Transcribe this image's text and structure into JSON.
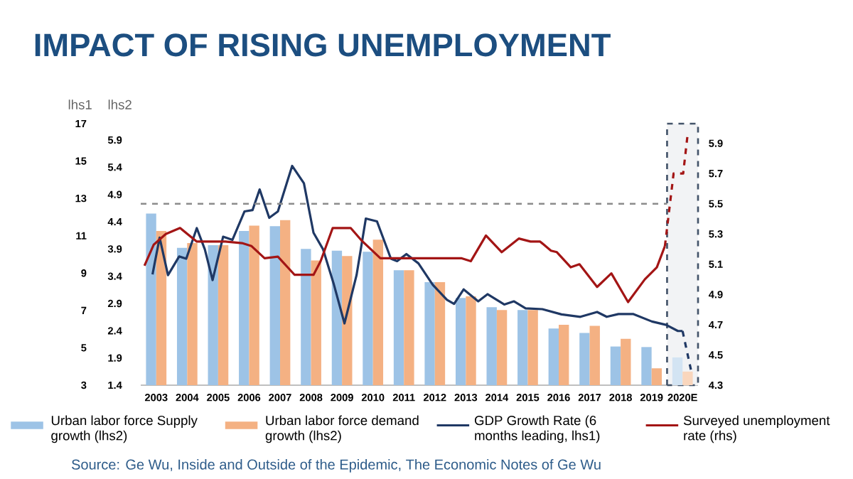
{
  "chart_data": {
    "type": "bar",
    "title": "IMPACT OF RISING UNEMPLOYMENT",
    "ylabel": "lhs1",
    "y3label": "lhs2",
    "x": [
      2003,
      2004,
      2005,
      2006,
      2007,
      2008,
      2009,
      2010,
      2011,
      2012,
      2013,
      2014,
      2015,
      2016,
      2017,
      2018,
      2019,
      2020
    ],
    "xlim": [
      2002.5,
      2020.5
    ],
    "xticks": [
      2003,
      2004,
      2005,
      2006,
      2007,
      2008,
      2009,
      2010,
      2011,
      2012,
      2013,
      2014,
      2015,
      2016,
      2017,
      2018,
      2019,
      {
        "value": 2020,
        "label": "2020E"
      }
    ],
    "ylim": [
      3,
      17
    ],
    "yticks": [
      3,
      5,
      7,
      9,
      11,
      13,
      15,
      17
    ],
    "y3lim": [
      1.4,
      6.2
    ],
    "y3ticks": [
      1.4,
      1.9,
      2.4,
      2.9,
      3.4,
      3.9,
      4.4,
      4.9,
      5.4,
      5.9
    ],
    "y2lim": [
      4.3,
      6.03
    ],
    "y2ticks": [
      4.3,
      4.5,
      4.7,
      4.9,
      5.1,
      5.3,
      5.5,
      5.7,
      5.9
    ],
    "series": [
      {
        "name": "Urban labor force Supply growth (lhs2)",
        "axis": "y3",
        "colors": [
          "#9dc3e6",
          "#9dc3e6",
          "#9dc3e6",
          "#9dc3e6",
          "#9dc3e6",
          "#9dc3e6",
          "#9dc3e6",
          "#9dc3e6",
          "#9dc3e6",
          "#9dc3e6",
          "#9dc3e6",
          "#9dc3e6",
          "#9dc3e6",
          "#9dc3e6",
          "#9dc3e6",
          "#9dc3e6",
          "#9dc3e6",
          "#d3e4f3"
        ],
        "values": [
          4.55,
          3.92,
          3.97,
          4.23,
          4.32,
          3.9,
          3.87,
          3.85,
          3.51,
          3.29,
          3.0,
          2.83,
          2.78,
          2.44,
          2.36,
          2.11,
          2.1,
          1.91
        ]
      },
      {
        "name": "Urban labor force demand growth (lhs2)",
        "axis": "y3",
        "colors": [
          "#f4b183",
          "#f4b183",
          "#f4b183",
          "#f4b183",
          "#f4b183",
          "#f4b183",
          "#f4b183",
          "#f4b183",
          "#f4b183",
          "#f4b183",
          "#f4b183",
          "#f4b183",
          "#f4b183",
          "#f4b183",
          "#f4b183",
          "#f4b183",
          "#f4b183",
          "#f9d6bd"
        ],
        "values": [
          4.23,
          4.01,
          3.97,
          4.33,
          4.43,
          3.69,
          3.77,
          4.07,
          3.51,
          3.29,
          3.03,
          2.78,
          2.78,
          2.51,
          2.49,
          2.25,
          1.71,
          1.65
        ]
      },
      {
        "name": "GDP Growth Rate (6 months leading, lhs1)",
        "type": "line",
        "axis": "y",
        "color": "#1f3864",
        "x": [
          2002.88,
          2003.11,
          2003.38,
          2003.74,
          2003.97,
          2004.31,
          2004.57,
          2004.82,
          2005.16,
          2005.46,
          2005.85,
          2006.11,
          2006.34,
          2006.65,
          2006.93,
          2007.39,
          2007.77,
          2008.08,
          2008.39,
          2008.74,
          2009.08,
          2009.47,
          2009.77,
          2010.13,
          2010.58,
          2010.78,
          2011.08,
          2011.47,
          2011.93,
          2012.39,
          2012.62,
          2012.93,
          2013.4,
          2013.7,
          2014.24,
          2014.55,
          2014.93,
          2015.47,
          2016.09,
          2016.7,
          2017.24,
          2017.55,
          2017.93,
          2018.4,
          2019.01,
          2019.47,
          2019.85,
          2020.0
        ],
        "values": [
          8.93,
          10.9,
          8.89,
          9.89,
          9.77,
          11.41,
          10.27,
          8.63,
          10.95,
          10.78,
          12.3,
          12.37,
          13.48,
          11.96,
          12.3,
          14.74,
          13.81,
          11.16,
          10.27,
          8.38,
          6.31,
          8.89,
          11.92,
          11.77,
          9.77,
          9.64,
          10.02,
          9.52,
          8.38,
          7.57,
          7.35,
          8.13,
          7.49,
          7.87,
          7.32,
          7.49,
          7.11,
          7.07,
          6.79,
          6.66,
          6.92,
          6.66,
          6.81,
          6.81,
          6.41,
          6.23,
          5.9,
          5.9
        ]
      },
      {
        "type": "line",
        "axis": "y",
        "color": "#1f3864",
        "line_style": "dashed",
        "x": [
          2020.0,
          2020.27
        ],
        "values": [
          5.9,
          3.83
        ]
      },
      {
        "name": "Surveyed unemployment rate (rhs)",
        "type": "line",
        "axis": "y2",
        "color": "#a31515",
        "x": [
          2002.62,
          2002.92,
          2003.31,
          2003.77,
          2004.31,
          2004.69,
          2005.23,
          2005.77,
          2006.08,
          2006.5,
          2006.93,
          2007.47,
          2008.08,
          2008.31,
          2008.7,
          2009.28,
          2009.62,
          2010.24,
          2010.7,
          2012.85,
          2013.16,
          2013.65,
          2014.16,
          2014.71,
          2015.09,
          2015.4,
          2015.75,
          2015.94,
          2016.39,
          2016.67,
          2017.24,
          2017.7,
          2018.24,
          2018.78,
          2019.17,
          2019.43
        ],
        "values": [
          5.09,
          5.23,
          5.3,
          5.34,
          5.25,
          5.25,
          5.25,
          5.24,
          5.22,
          5.14,
          5.15,
          5.03,
          5.03,
          5.12,
          5.34,
          5.34,
          5.26,
          5.14,
          5.14,
          5.14,
          5.12,
          5.29,
          5.18,
          5.27,
          5.25,
          5.25,
          5.19,
          5.18,
          5.08,
          5.1,
          4.95,
          5.04,
          4.85,
          5.0,
          5.08,
          5.22
        ]
      },
      {
        "type": "line",
        "axis": "y2",
        "color": "#a31515",
        "line_style": "dashed",
        "x": [
          2019.43,
          2019.71,
          2020.02,
          2020.17
        ],
        "values": [
          5.22,
          5.7,
          5.7,
          5.97
        ]
      }
    ],
    "ref_lines": [
      {
        "axis": "y2",
        "value": 5.5,
        "color": "#8c8c8c",
        "line_style": "dashed"
      }
    ],
    "bands": [
      {
        "axis": "x",
        "from": 2019.5,
        "to": 2020.5,
        "color": "#44546a"
      }
    ],
    "legend": "bottom",
    "annotations": [
      "Source: Ge Wu, Inside and Outside of the Epidemic, The Economic Notes of Ge Wu"
    ]
  }
}
